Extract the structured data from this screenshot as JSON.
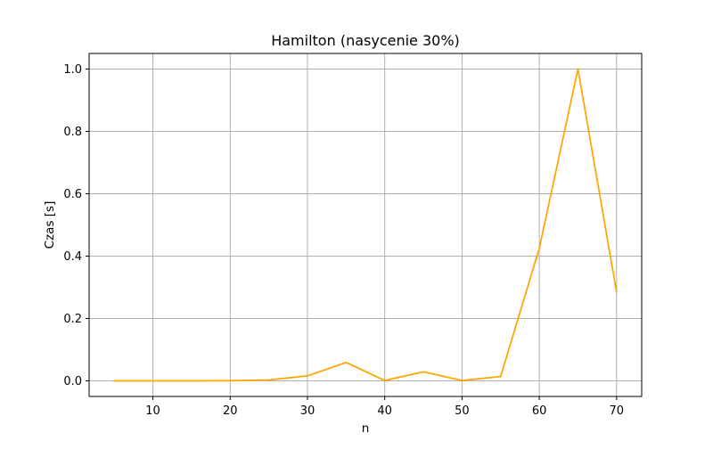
{
  "chart_data": {
    "type": "line",
    "title": "Hamilton (nasycenie 30%)",
    "xlabel": "n",
    "ylabel": "Czas [s]",
    "xlim": [
      1.75,
      73.25
    ],
    "ylim": [
      -0.05,
      1.05
    ],
    "xticks": [
      10,
      20,
      30,
      40,
      50,
      60,
      70
    ],
    "xtick_labels": [
      "10",
      "20",
      "30",
      "40",
      "50",
      "60",
      "70"
    ],
    "yticks": [
      0.0,
      0.2,
      0.4,
      0.6,
      0.8,
      1.0
    ],
    "ytick_labels": [
      "0.0",
      "0.2",
      "0.4",
      "0.6",
      "0.8",
      "1.0"
    ],
    "grid": true,
    "series": [
      {
        "color": "#ffa500",
        "x": [
          5,
          10,
          15,
          20,
          25,
          30,
          35,
          40,
          45,
          50,
          55,
          60,
          65,
          70
        ],
        "y": [
          0.0,
          0.0,
          0.0,
          0.0005,
          0.003,
          0.016,
          0.059,
          0.001,
          0.029,
          0.001,
          0.014,
          0.425,
          1.0,
          0.285
        ]
      }
    ]
  }
}
